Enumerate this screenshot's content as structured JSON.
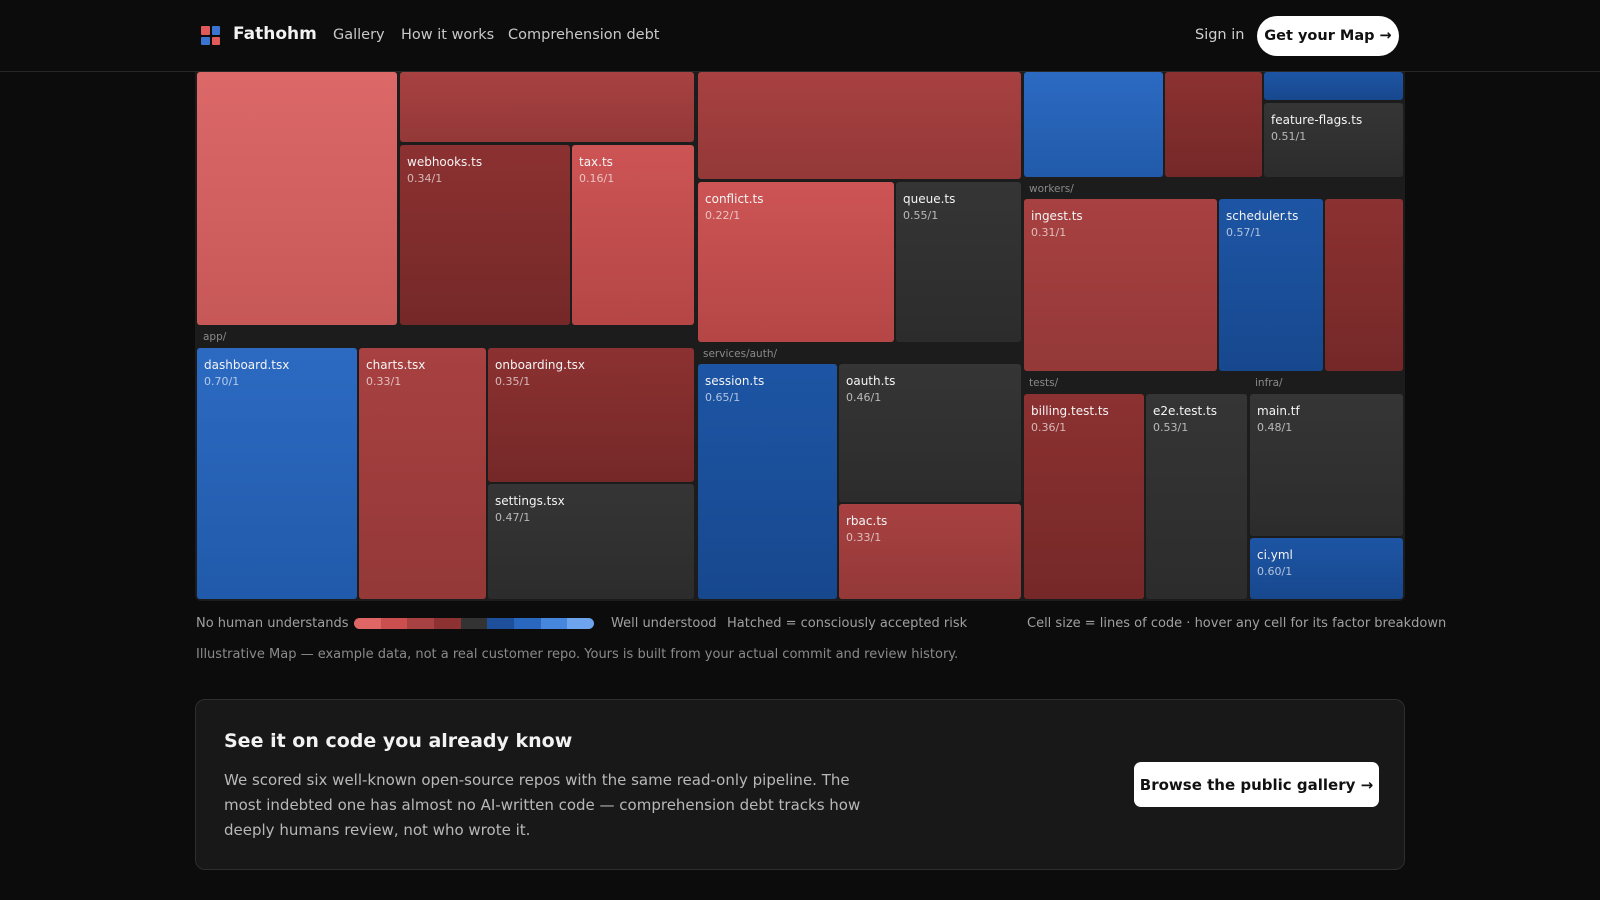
{
  "nav": {
    "brand": "Fathohm",
    "links": [
      "Gallery",
      "How it works",
      "Comprehension debt"
    ],
    "sign_in": "Sign in",
    "cta": "Get your Map →"
  },
  "treemap": {
    "directories": {
      "app": "app/",
      "services_auth": "services/auth/",
      "workers": "workers/",
      "tests": "tests/",
      "infra": "infra/"
    },
    "cells": {
      "webhooks": {
        "name": "webhooks.ts",
        "score": "0.34/1"
      },
      "tax": {
        "name": "tax.ts",
        "score": "0.16/1"
      },
      "conflict": {
        "name": "conflict.ts",
        "score": "0.22/1"
      },
      "queue": {
        "name": "queue.ts",
        "score": "0.55/1"
      },
      "feature_flags": {
        "name": "feature-flags.ts",
        "score": "0.51/1"
      },
      "ingest": {
        "name": "ingest.ts",
        "score": "0.31/1"
      },
      "scheduler": {
        "name": "scheduler.ts",
        "score": "0.57/1"
      },
      "dashboard": {
        "name": "dashboard.tsx",
        "score": "0.70/1"
      },
      "charts": {
        "name": "charts.tsx",
        "score": "0.33/1"
      },
      "onboarding": {
        "name": "onboarding.tsx",
        "score": "0.35/1"
      },
      "settings": {
        "name": "settings.tsx",
        "score": "0.47/1"
      },
      "session": {
        "name": "session.ts",
        "score": "0.65/1"
      },
      "oauth": {
        "name": "oauth.ts",
        "score": "0.46/1"
      },
      "rbac": {
        "name": "rbac.ts",
        "score": "0.33/1"
      },
      "billing_test": {
        "name": "billing.test.ts",
        "score": "0.36/1"
      },
      "e2e_test": {
        "name": "e2e.test.ts",
        "score": "0.53/1"
      },
      "main_tf": {
        "name": "main.tf",
        "score": "0.48/1"
      },
      "ci_yml": {
        "name": "ci.yml",
        "score": "0.60/1"
      }
    }
  },
  "legend": {
    "low": "No human understands",
    "high": "Well understood",
    "hatched": "Hatched = consciously accepted risk",
    "size_note": "Cell size = lines of code · hover any cell for its factor breakdown",
    "scale_colors": [
      "#e06666",
      "#cc4f4f",
      "#a84141",
      "#8c3232",
      "#333333",
      "#1d4f9a",
      "#2a68c0",
      "#4686dd",
      "#6ea3ee"
    ]
  },
  "disclaimer": "Illustrative Map — example data, not a real customer repo. Yours is built from your actual commit and review history.",
  "gallery": {
    "title": "See it on code you already know",
    "body": "We scored six well-known open-source repos with the same read-only pipeline. The most indebted one has almost no AI-written code — comprehension debt tracks how deeply humans review, not who wrote it.",
    "button": "Browse the public gallery →"
  }
}
